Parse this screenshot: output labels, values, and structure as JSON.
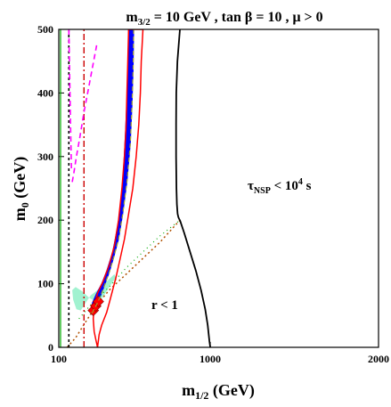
{
  "chart_data": {
    "type": "line",
    "title": {
      "main": "m",
      "sub": "3/2",
      "rest": " = 10 GeV , tan β = 10 ,  μ > 0"
    },
    "xlabel": {
      "main": "m",
      "sub": "1/2",
      "rest": " (GeV)"
    },
    "ylabel": {
      "main": "m",
      "sub": "0",
      "rest": " (GeV)"
    },
    "xlim": [
      100,
      2000
    ],
    "ylim": [
      0,
      500
    ],
    "x_ticks": [
      100,
      1000,
      2000
    ],
    "y_ticks": [
      0,
      100,
      200,
      300,
      400,
      500
    ],
    "annotations": {
      "tau": {
        "main": "τ",
        "sub": "NSP",
        "mid": " < 10",
        "sup": "4",
        "rest": " s"
      },
      "r": "r < 1"
    },
    "colors": {
      "wmap_band": "#0000ff",
      "red_contour": "#ff0000",
      "magenta_dash": "#ff00ff",
      "redline_dashdot": "#cc0000",
      "black_solid": "#000000",
      "brown_dotted": "#b05000",
      "green_dotted": "#00aa00",
      "mint_region": "#90f0c8",
      "olive_dashed": "#a0a030"
    },
    "series": [
      {
        "key": "tau_boundary",
        "style": "black_solid",
        "x": [
          820,
          805,
          798,
          797,
          797,
          799,
          802,
          806,
          810,
          815,
          820
        ],
        "y": [
          500,
          450,
          400,
          350,
          300,
          250,
          225,
          210,
          205,
          202,
          200
        ]
      },
      {
        "key": "r_boundary",
        "style": "black_solid",
        "x": [
          820,
          845,
          880,
          915,
          945,
          970,
          985,
          995,
          1000
        ],
        "y": [
          200,
          180,
          150,
          120,
          90,
          60,
          35,
          10,
          0
        ]
      },
      {
        "key": "chargino_lep",
        "style": "black_dashed",
        "x": [
          160,
          160
        ],
        "y": [
          0,
          500
        ]
      },
      {
        "key": "higgs_lep",
        "style": "redline_dashdot",
        "x": [
          250,
          250
        ],
        "y": [
          0,
          500
        ]
      },
      {
        "key": "bsgamma",
        "style": "magenta_dash",
        "x": [
          180,
          190,
          205,
          225,
          250,
          275,
          300,
          325
        ],
        "y": [
          260,
          275,
          300,
          330,
          370,
          405,
          440,
          475
        ]
      },
      {
        "key": "gminus2",
        "style": "magenta_dash",
        "x": [
          160,
          165,
          170,
          175
        ],
        "y": [
          500,
          420,
          350,
          280
        ]
      },
      {
        "key": "stau_lsp_line",
        "style": "brown_dotted",
        "x": [
          150,
          200,
          260,
          320,
          400,
          500,
          600,
          700,
          820
        ],
        "y": [
          0,
          15,
          40,
          65,
          90,
          115,
          140,
          165,
          200
        ]
      },
      {
        "key": "green_line",
        "style": "green_dotted",
        "x": [
          220,
          300,
          400,
          500,
          600,
          700,
          820
        ],
        "y": [
          45,
          70,
          95,
          125,
          150,
          175,
          200
        ]
      },
      {
        "key": "red_contour",
        "style": "red_contour",
        "x": [
          330,
          320,
          310,
          305,
          310,
          330,
          365,
          400,
          430,
          455,
          475,
          490,
          500,
          505,
          510,
          515,
          600,
          590,
          585,
          575,
          560,
          540,
          515,
          490,
          465,
          440,
          420,
          400,
          385,
          370,
          355,
          340,
          330
        ],
        "y": [
          0,
          12,
          25,
          45,
          65,
          85,
          105,
          130,
          160,
          200,
          250,
          300,
          350,
          400,
          450,
          500,
          500,
          450,
          400,
          350,
          300,
          250,
          210,
          170,
          140,
          110,
          90,
          70,
          55,
          45,
          35,
          20,
          0
        ]
      },
      {
        "key": "wmap_band",
        "style": "wmap_band",
        "x": [
          290,
          300,
          325,
          355,
          385,
          420,
          450,
          470,
          485,
          495,
          505,
          510,
          515,
          545,
          542,
          535,
          525,
          505,
          480,
          455,
          425,
          400,
          375,
          350,
          330,
          310,
          295,
          290
        ],
        "y": [
          55,
          70,
          85,
          100,
          120,
          150,
          190,
          230,
          280,
          330,
          390,
          440,
          500,
          500,
          440,
          380,
          320,
          260,
          210,
          170,
          140,
          118,
          100,
          82,
          70,
          60,
          52,
          55
        ]
      },
      {
        "key": "mint_region",
        "style": "mint_region",
        "x": [
          180,
          200,
          240,
          280,
          320,
          360,
          400,
          440,
          430,
          390,
          350,
          320,
          290,
          260,
          230,
          205,
          185,
          180
        ],
        "y": [
          90,
          95,
          88,
          78,
          72,
          78,
          95,
          110,
          115,
          105,
          95,
          88,
          82,
          70,
          58,
          60,
          75,
          90
        ]
      },
      {
        "key": "diamonds",
        "style": "red_diamond",
        "x": [
          305,
          320,
          335
        ],
        "y": [
          58,
          65,
          72
        ]
      }
    ]
  }
}
